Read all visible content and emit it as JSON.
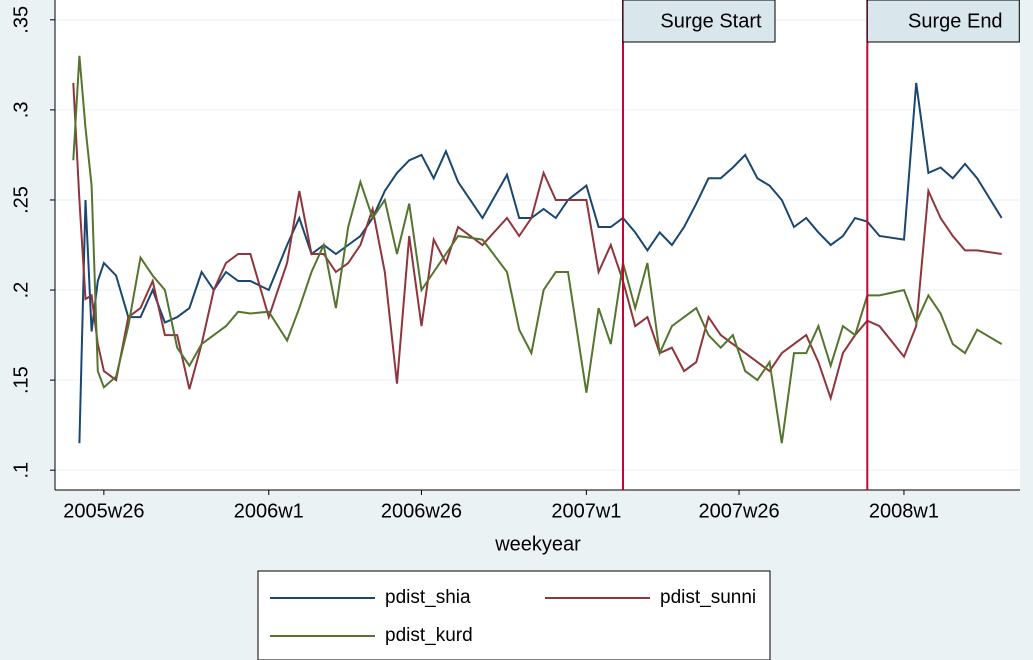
{
  "chart_data": {
    "type": "line",
    "x_label": "weekyear",
    "x": [
      2360,
      2361,
      2362,
      2363,
      2364,
      2365,
      2367,
      2369,
      2371,
      2373,
      2375,
      2377,
      2379,
      2381,
      2383,
      2385,
      2387,
      2389,
      2392,
      2395,
      2397,
      2399,
      2401,
      2403,
      2405,
      2407,
      2409,
      2411,
      2413,
      2415,
      2417,
      2419,
      2421,
      2423,
      2427,
      2431,
      2433,
      2435,
      2437,
      2439,
      2441,
      2444,
      2446,
      2448,
      2450,
      2452,
      2454,
      2456,
      2458,
      2460,
      2462,
      2464,
      2466,
      2468,
      2470,
      2472,
      2474,
      2476,
      2478,
      2480,
      2482,
      2484,
      2486,
      2488,
      2490,
      2492,
      2496,
      2498,
      2500,
      2502,
      2504,
      2506,
      2508,
      2512
    ],
    "series": [
      {
        "name": "pdist_shia",
        "color": "#1a476f",
        "values": [
          null,
          0.115,
          0.25,
          0.177,
          0.205,
          0.215,
          0.208,
          0.185,
          0.185,
          0.2,
          0.182,
          0.185,
          0.19,
          0.21,
          0.2,
          0.21,
          0.205,
          0.205,
          0.2,
          0.225,
          0.24,
          0.22,
          0.225,
          0.22,
          0.225,
          0.23,
          0.24,
          0.255,
          0.265,
          0.272,
          0.275,
          0.262,
          0.277,
          0.26,
          0.24,
          0.264,
          0.24,
          0.24,
          0.245,
          0.24,
          0.25,
          0.258,
          0.235,
          0.235,
          0.24,
          0.232,
          0.222,
          0.232,
          0.225,
          0.235,
          0.248,
          0.262,
          0.262,
          0.268,
          0.275,
          0.262,
          0.258,
          0.25,
          0.235,
          0.24,
          0.232,
          0.225,
          0.23,
          0.24,
          0.238,
          0.23,
          0.228,
          0.315,
          0.265,
          0.268,
          0.262,
          0.27,
          0.262,
          0.24
        ]
      },
      {
        "name": "pdist_sunni",
        "color": "#90353b",
        "values": [
          0.315,
          0.25,
          0.195,
          0.197,
          0.17,
          0.155,
          0.15,
          0.185,
          0.19,
          0.205,
          0.175,
          0.175,
          0.145,
          0.17,
          0.2,
          0.215,
          0.22,
          0.22,
          0.185,
          0.215,
          0.255,
          0.22,
          0.22,
          0.21,
          0.215,
          0.225,
          0.245,
          0.21,
          0.148,
          0.23,
          0.18,
          0.228,
          0.215,
          0.235,
          0.225,
          0.24,
          0.23,
          0.24,
          0.265,
          0.25,
          0.25,
          0.25,
          0.21,
          0.225,
          0.205,
          0.18,
          0.185,
          0.165,
          0.168,
          0.155,
          0.16,
          0.185,
          0.175,
          0.17,
          0.165,
          0.16,
          0.155,
          0.165,
          0.17,
          0.175,
          0.16,
          0.14,
          0.165,
          0.175,
          0.183,
          0.18,
          0.163,
          0.18,
          0.255,
          0.24,
          0.23,
          0.222,
          0.222,
          0.22
        ]
      },
      {
        "name": "pdist_kurd",
        "color": "#55752f",
        "values": [
          0.272,
          0.33,
          0.29,
          0.258,
          0.155,
          0.146,
          0.152,
          0.18,
          0.218,
          0.208,
          0.2,
          0.168,
          0.158,
          0.17,
          0.175,
          0.18,
          0.188,
          0.187,
          0.188,
          0.172,
          0.19,
          0.21,
          0.225,
          0.19,
          0.235,
          0.26,
          0.24,
          0.25,
          0.22,
          0.248,
          0.2,
          0.21,
          0.22,
          0.23,
          0.228,
          0.21,
          0.178,
          0.165,
          0.2,
          0.21,
          0.21,
          0.143,
          0.19,
          0.17,
          0.215,
          0.19,
          0.215,
          0.165,
          0.18,
          0.185,
          0.19,
          0.175,
          0.168,
          0.175,
          0.155,
          0.15,
          0.16,
          0.115,
          0.165,
          0.165,
          0.18,
          0.158,
          0.18,
          0.175,
          0.197,
          0.197,
          0.2,
          0.182,
          0.197,
          0.187,
          0.17,
          0.165,
          0.178,
          0.17
        ]
      }
    ],
    "xlim": [
      2357,
      2515
    ],
    "xticks": [
      {
        "value": 2365,
        "label": "2005w26"
      },
      {
        "value": 2392,
        "label": "2006w1"
      },
      {
        "value": 2417,
        "label": "2006w26"
      },
      {
        "value": 2444,
        "label": "2007w1"
      },
      {
        "value": 2469,
        "label": "2007w26"
      },
      {
        "value": 2496,
        "label": "2008w1"
      }
    ],
    "ylim": [
      0.089,
      0.361
    ],
    "yticks": [
      {
        "value": 0.1,
        "label": ".1"
      },
      {
        "value": 0.15,
        "label": ".15"
      },
      {
        "value": 0.2,
        "label": ".2"
      },
      {
        "value": 0.25,
        "label": ".25"
      },
      {
        "value": 0.3,
        "label": ".3"
      },
      {
        "value": 0.35,
        "label": ".35"
      }
    ],
    "grid": true,
    "annotations": [
      {
        "label": "Surge Start",
        "x": 2450,
        "color": "#c10534"
      },
      {
        "label": "Surge End",
        "x": 2490,
        "color": "#c10534"
      }
    ]
  }
}
